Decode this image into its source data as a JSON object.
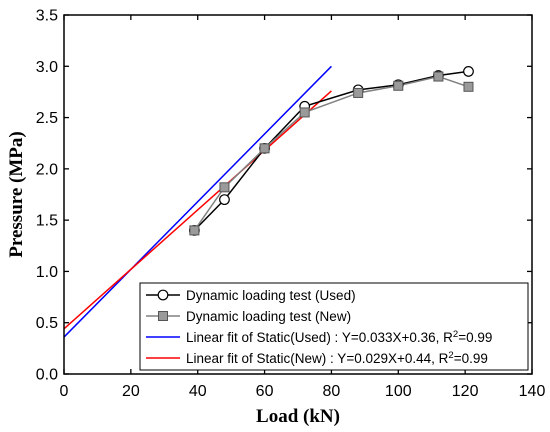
{
  "chart_data": {
    "type": "line",
    "xlabel": "Load (kN)",
    "ylabel": "Pressure (MPa)",
    "xlim": [
      0,
      140
    ],
    "ylim": [
      0.0,
      3.5
    ],
    "x_ticks": [
      0,
      20,
      40,
      60,
      80,
      100,
      120,
      140
    ],
    "y_ticks": [
      0.0,
      0.5,
      1.0,
      1.5,
      2.0,
      2.5,
      3.0,
      3.5
    ],
    "x_tick_labels": [
      "0",
      "20",
      "40",
      "60",
      "80",
      "100",
      "120",
      "140"
    ],
    "y_tick_labels": [
      "0.0",
      "0.5",
      "1.0",
      "1.5",
      "2.0",
      "2.5",
      "3.0",
      "3.5"
    ],
    "grid": false,
    "legend_position": "bottom-right",
    "series": [
      {
        "name": "Dynamic loading test (Used)",
        "kind": "line-marker",
        "marker": "circle",
        "color": "#000000",
        "x": [
          39,
          48,
          60,
          72,
          88,
          100,
          112,
          121
        ],
        "y": [
          1.4,
          1.7,
          2.2,
          2.61,
          2.77,
          2.82,
          2.91,
          2.95
        ]
      },
      {
        "name": "Dynamic loading test (New)",
        "kind": "line-marker",
        "marker": "square",
        "color": "#808080",
        "x": [
          39,
          48,
          60,
          72,
          88,
          100,
          112,
          121
        ],
        "y": [
          1.4,
          1.82,
          2.2,
          2.55,
          2.74,
          2.81,
          2.9,
          2.8
        ]
      },
      {
        "name_prefix": "Linear fit of Static(Used) : Y=0.033X+0.36, R",
        "name_sup": "2",
        "name_suffix": "=0.99",
        "kind": "fit",
        "color": "#0000ff",
        "slope": 0.033,
        "intercept": 0.36,
        "x_range": [
          0,
          80
        ]
      },
      {
        "name_prefix": "Linear fit of Static(New) : Y=0.029X+0.44, R",
        "name_sup": "2",
        "name_suffix": "=0.99",
        "kind": "fit",
        "color": "#ff0000",
        "slope": 0.029,
        "intercept": 0.44,
        "x_range": [
          0,
          80
        ]
      }
    ]
  }
}
